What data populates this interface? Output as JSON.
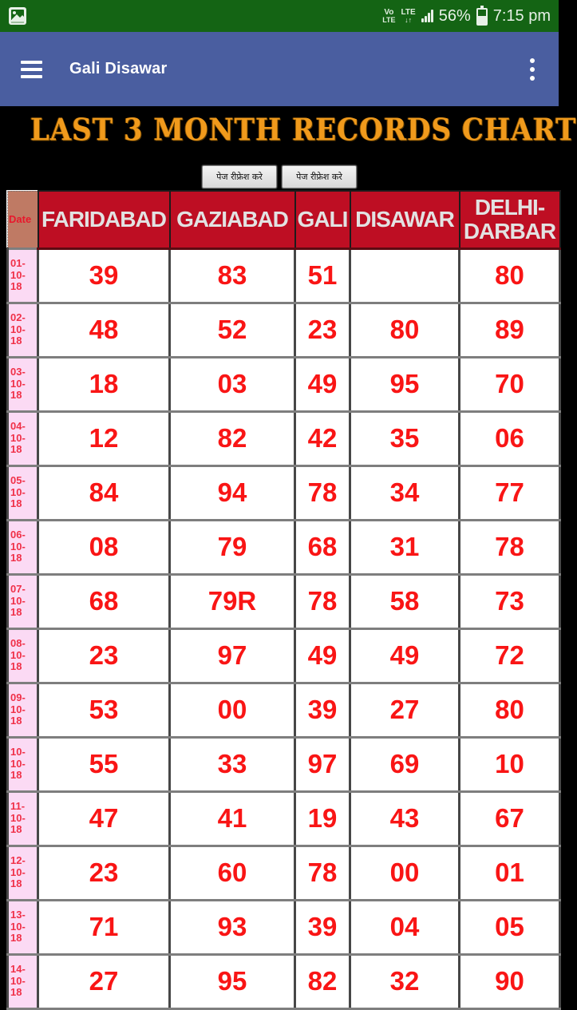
{
  "status_bar": {
    "battery_percent": "56%",
    "time": "7:15 pm",
    "volte_line1": "Vo",
    "volte_line2": "LTE",
    "lte_line1": "LTE",
    "lte_line2": "↓↑"
  },
  "app_bar": {
    "title": "Gali Disawar"
  },
  "banner": {
    "title": "LAST 3 MONTH RECORDS CHART"
  },
  "refresh_button_label": "पेज रीफ्रेश करे",
  "table": {
    "date_header": "Date",
    "columns": [
      "FARIDABAD",
      "GAZIABAD",
      "GALI",
      "DISAWAR",
      "DELHI-DARBAR"
    ],
    "rows": [
      {
        "date": "01-10-18",
        "values": [
          "39",
          "83",
          "51",
          "",
          "80"
        ]
      },
      {
        "date": "02-10-18",
        "values": [
          "48",
          "52",
          "23",
          "80",
          "89"
        ]
      },
      {
        "date": "03-10-18",
        "values": [
          "18",
          "03",
          "49",
          "95",
          "70"
        ]
      },
      {
        "date": "04-10-18",
        "values": [
          "12",
          "82",
          "42",
          "35",
          "06"
        ]
      },
      {
        "date": "05-10-18",
        "values": [
          "84",
          "94",
          "78",
          "34",
          "77"
        ]
      },
      {
        "date": "06-10-18",
        "values": [
          "08",
          "79",
          "68",
          "31",
          "78"
        ]
      },
      {
        "date": "07-10-18",
        "values": [
          "68",
          "79R",
          "78",
          "58",
          "73"
        ]
      },
      {
        "date": "08-10-18",
        "values": [
          "23",
          "97",
          "49",
          "49",
          "72"
        ]
      },
      {
        "date": "09-10-18",
        "values": [
          "53",
          "00",
          "39",
          "27",
          "80"
        ]
      },
      {
        "date": "10-10-18",
        "values": [
          "55",
          "33",
          "97",
          "69",
          "10"
        ]
      },
      {
        "date": "11-10-18",
        "values": [
          "47",
          "41",
          "19",
          "43",
          "67"
        ]
      },
      {
        "date": "12-10-18",
        "values": [
          "23",
          "60",
          "78",
          "00",
          "01"
        ]
      },
      {
        "date": "13-10-18",
        "values": [
          "71",
          "93",
          "39",
          "04",
          "05"
        ]
      },
      {
        "date": "14-10-18",
        "values": [
          "27",
          "95",
          "82",
          "32",
          "90"
        ]
      }
    ]
  },
  "colors": {
    "status_green": "#146414",
    "app_bar_blue": "#4A5EA0",
    "banner_orange": "#F09A1C",
    "header_red": "#BE0E23",
    "date_header_bg": "#BF7A64",
    "date_cell_pink": "#FBDAF4",
    "value_red": "#F91515",
    "date_red": "#F03048"
  }
}
